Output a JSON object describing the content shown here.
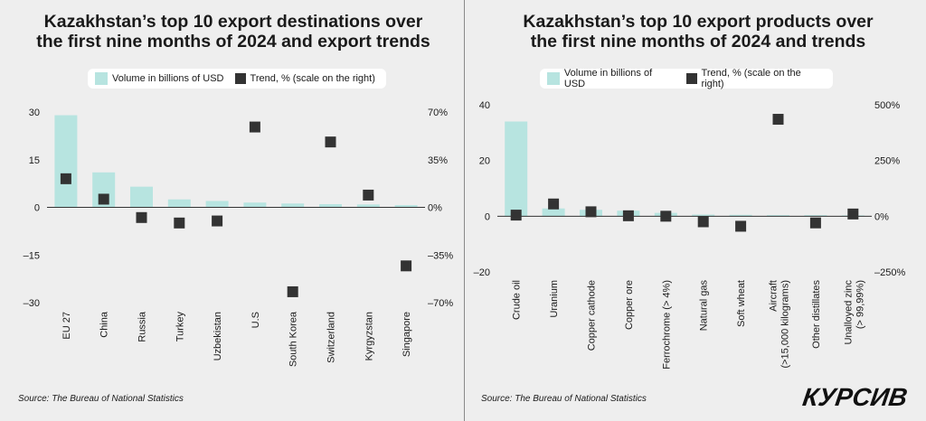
{
  "left": {
    "title_line1": "Kazakhstan’s top 10 export destinations over",
    "title_line2": "the first nine months of 2024 and export trends",
    "legend": {
      "bar_label": "Volume in billions of USD",
      "trend_label": "Trend, % (scale on the right)"
    },
    "source": "Source: The Bureau of National Statistics"
  },
  "right": {
    "title_line1": "Kazakhstan’s top 10 export products over",
    "title_line2": "the first nine months of 2024 and trends",
    "legend": {
      "bar_label": "Volume in billions of USD",
      "trend_label": "Trend, % (scale on the right)"
    },
    "source": "Source: The Bureau of National Statistics"
  },
  "logo_text": "КУРСИВ",
  "colors": {
    "bar": "#b7e4e0",
    "marker": "#333333",
    "background": "#eeeeee",
    "zero_line": "#333333"
  },
  "chart_data": [
    {
      "type": "bar",
      "categories": [
        "EU 27",
        "China",
        "Russia",
        "Turkey",
        "Uzbekistan",
        "U.S",
        "South Korea",
        "Switzerland",
        "Kyrgyzstan",
        "Singapore"
      ],
      "series": [
        {
          "name": "Volume in billions of USD",
          "type": "bar",
          "axis": "left",
          "values": [
            29,
            11,
            6.5,
            2.5,
            2,
            1.5,
            1.2,
            1,
            0.9,
            0.7
          ]
        },
        {
          "name": "Trend, % (scale on the right)",
          "type": "scatter",
          "axis": "right",
          "values": [
            21,
            6,
            -7.5,
            -11.5,
            -10,
            59,
            -62,
            48,
            9,
            -43
          ]
        }
      ],
      "left_axis": {
        "ylim": [
          -30,
          30
        ],
        "ticks": [
          30,
          15,
          0,
          -15,
          -30
        ],
        "tick_labels": [
          "30",
          "15",
          "0",
          "–15",
          "–30"
        ]
      },
      "right_axis": {
        "ylim": [
          -70,
          70
        ],
        "ticks": [
          70,
          35,
          0,
          -35,
          -70
        ],
        "tick_labels": [
          "70%",
          "35%",
          "0%",
          "–35%",
          "–70%"
        ]
      },
      "grid": false,
      "legend": "top"
    },
    {
      "type": "bar",
      "categories": [
        "Crude oil",
        "Uranium",
        "Copper cathode",
        "Copper  ore",
        "Ferrochrome (> 4%)",
        "Natural gas",
        "Soft wheat",
        "Aircraft (>15,000 kilograms)",
        "Other distillates",
        "Unalloyed zinc (> 99,99%)"
      ],
      "category_lines": [
        [
          "Crude oil"
        ],
        [
          "Uranium"
        ],
        [
          "Copper cathode"
        ],
        [
          "Copper  ore"
        ],
        [
          "Ferrochrome (> 4%)"
        ],
        [
          "Natural gas"
        ],
        [
          "Soft wheat"
        ],
        [
          "Aircraft",
          "(>15,000 kilograms)"
        ],
        [
          "Other distillates"
        ],
        [
          "Unalloyed zinc",
          "(> 99,99%)"
        ]
      ],
      "series": [
        {
          "name": "Volume in billions of USD",
          "type": "bar",
          "axis": "left",
          "values": [
            34,
            2.8,
            2.3,
            2,
            1.2,
            0.6,
            0.5,
            0.4,
            0.4,
            0.3
          ]
        },
        {
          "name": "Trend, % (scale on the right)",
          "type": "scatter",
          "axis": "right",
          "values": [
            5,
            55,
            20,
            2,
            0,
            -25,
            -45,
            435,
            -30,
            10
          ]
        }
      ],
      "left_axis": {
        "ylim": [
          -20,
          40
        ],
        "ticks": [
          40,
          20,
          0,
          -20
        ],
        "tick_labels": [
          "40",
          "20",
          "0",
          "–20"
        ]
      },
      "right_axis": {
        "ylim": [
          -250,
          500
        ],
        "ticks": [
          500,
          250,
          0,
          -250
        ],
        "tick_labels": [
          "500%",
          "250%",
          "0%",
          "–250%"
        ]
      },
      "grid": false,
      "legend": "top"
    }
  ]
}
